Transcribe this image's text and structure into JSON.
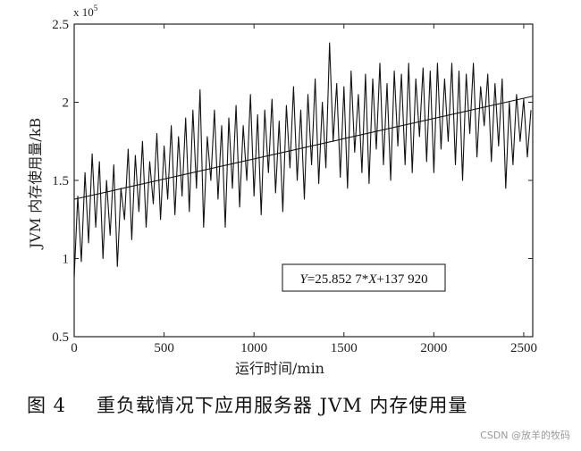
{
  "chart_data": {
    "type": "line",
    "title": "",
    "xlabel": "运行时间/min",
    "ylabel": "JVM 内存使用量/kB",
    "y_exponent_label": "x 10",
    "y_exponent_power": "5",
    "xlim": [
      0,
      2550
    ],
    "ylim": [
      0.5,
      2.5
    ],
    "x_ticks": [
      0,
      500,
      1000,
      1500,
      2000,
      2500
    ],
    "y_ticks": [
      0.5,
      1,
      1.5,
      2,
      2.5
    ],
    "y_tick_labels": [
      "0.5",
      "1",
      "1.5",
      "2",
      "2.5"
    ],
    "grid": false,
    "trend_line": {
      "slope": 25.8527,
      "intercept": 137920,
      "scale": 100000,
      "x_range": [
        0,
        2550
      ]
    },
    "equation_label": {
      "y": "Y",
      "mid": "=25.852 7*",
      "x": "X",
      "tail": "+137 920"
    },
    "series": [
      {
        "x": [
          0,
          20,
          40,
          60,
          80,
          100,
          120,
          140,
          160,
          180,
          200,
          220,
          240,
          260,
          280,
          300,
          320,
          340,
          360,
          380,
          400,
          420,
          440,
          460,
          480,
          500,
          520,
          540,
          560,
          580,
          600,
          620,
          640,
          660,
          680,
          700,
          720,
          740,
          760,
          780,
          800,
          820,
          840,
          860,
          880,
          900,
          920,
          940,
          960,
          980,
          1000,
          1020,
          1040,
          1060,
          1080,
          1100,
          1120,
          1140,
          1160,
          1180,
          1200,
          1220,
          1240,
          1260,
          1280,
          1300,
          1320,
          1340,
          1360,
          1380,
          1400,
          1420,
          1440,
          1460,
          1480,
          1500,
          1520,
          1540,
          1560,
          1580,
          1600,
          1620,
          1640,
          1660,
          1680,
          1700,
          1720,
          1740,
          1760,
          1780,
          1800,
          1820,
          1840,
          1860,
          1880,
          1900,
          1920,
          1940,
          1960,
          1980,
          2000,
          2020,
          2040,
          2060,
          2080,
          2100,
          2120,
          2140,
          2160,
          2180,
          2200,
          2220,
          2240,
          2260,
          2280,
          2300,
          2320,
          2340,
          2360,
          2380,
          2400,
          2420,
          2440,
          2460,
          2480,
          2500,
          2520,
          2540
        ],
        "y": [
          0.88,
          1.4,
          0.98,
          1.55,
          1.1,
          1.67,
          1.2,
          1.62,
          1.0,
          1.5,
          1.15,
          1.6,
          0.95,
          1.45,
          1.25,
          1.7,
          1.12,
          1.66,
          1.3,
          1.75,
          1.2,
          1.62,
          1.35,
          1.8,
          1.25,
          1.72,
          1.38,
          1.85,
          1.28,
          1.78,
          1.4,
          1.9,
          1.3,
          1.95,
          1.45,
          2.08,
          1.2,
          1.78,
          1.5,
          1.95,
          1.38,
          1.85,
          1.2,
          1.9,
          1.45,
          1.98,
          1.33,
          1.85,
          1.5,
          2.05,
          1.4,
          1.92,
          1.28,
          1.95,
          1.55,
          2.02,
          1.42,
          1.88,
          1.3,
          1.98,
          1.58,
          2.1,
          1.5,
          1.95,
          1.38,
          2.05,
          1.6,
          2.15,
          1.48,
          2.0,
          1.58,
          2.38,
          1.75,
          2.12,
          1.52,
          2.1,
          1.45,
          2.2,
          1.68,
          2.05,
          1.55,
          2.18,
          1.48,
          2.15,
          1.7,
          2.25,
          1.6,
          2.12,
          1.5,
          2.2,
          1.72,
          2.18,
          1.6,
          2.25,
          1.55,
          2.15,
          1.78,
          2.22,
          1.62,
          2.2,
          1.55,
          2.25,
          1.7,
          2.15,
          1.75,
          2.25,
          1.6,
          2.2,
          1.5,
          2.18,
          1.8,
          2.25,
          1.65,
          2.1,
          1.85,
          2.18,
          1.62,
          2.12,
          1.72,
          2.15,
          1.45,
          2.0,
          1.6,
          2.05,
          1.75,
          2.02,
          1.65,
          1.95
        ]
      }
    ]
  },
  "caption": {
    "figure_number": "图 4",
    "text": "重负载情况下应用服务器 JVM 内存使用量"
  },
  "watermark": "CSDN @放羊的牧码"
}
